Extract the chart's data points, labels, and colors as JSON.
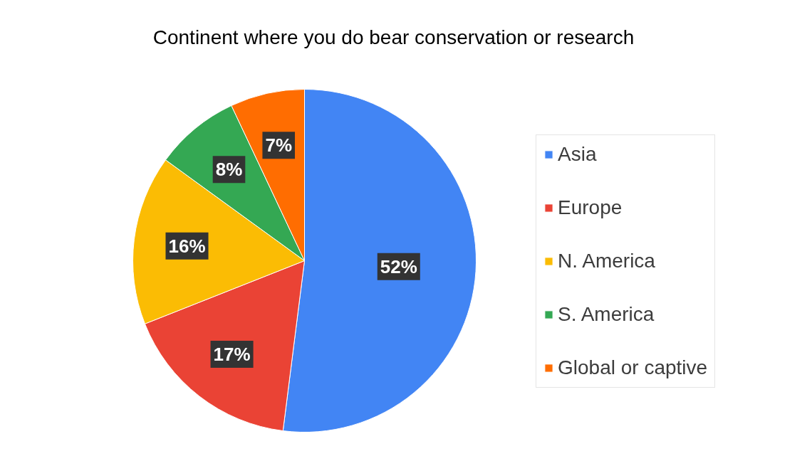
{
  "chart_data": {
    "type": "pie",
    "title": "Continent where you do bear conservation or research",
    "categories": [
      "Asia",
      "Europe",
      "N. America",
      "S. America",
      "Global or captive"
    ],
    "values": [
      52,
      17,
      16,
      8,
      7
    ],
    "value_labels": [
      "52%",
      "17%",
      "16%",
      "8%",
      "7%"
    ],
    "colors": [
      "#4285f4",
      "#ea4335",
      "#fbbc04",
      "#34a853",
      "#ff6d01"
    ],
    "legend": "right"
  }
}
